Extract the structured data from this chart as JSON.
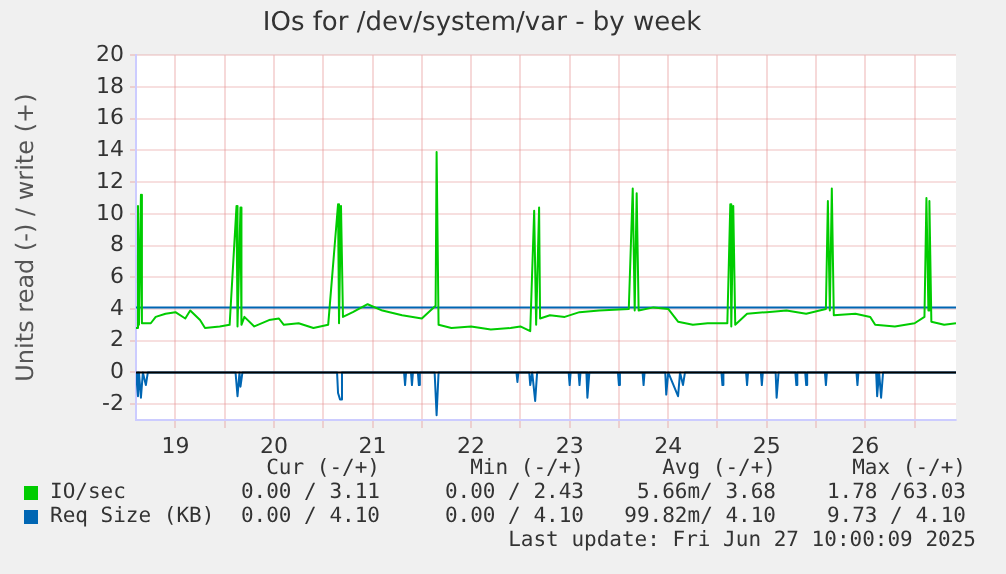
{
  "chart_data": {
    "type": "line",
    "title": "IOs for /dev/system/var - by week",
    "ylabel": "Units read (-) / write (+)",
    "xlim": [
      19.1,
      27.42
    ],
    "xticks": [
      {
        "value": 19.5,
        "label": "19"
      },
      {
        "value": 20,
        "label": null
      },
      {
        "value": 20.5,
        "label": "20"
      },
      {
        "value": 21,
        "label": null
      },
      {
        "value": 21.5,
        "label": "21"
      },
      {
        "value": 22,
        "label": null
      },
      {
        "value": 22.5,
        "label": "22"
      },
      {
        "value": 23,
        "label": null
      },
      {
        "value": 23.5,
        "label": "23"
      },
      {
        "value": 24,
        "label": null
      },
      {
        "value": 24.5,
        "label": "24"
      },
      {
        "value": 25,
        "label": null
      },
      {
        "value": 25.5,
        "label": "25"
      },
      {
        "value": 26,
        "label": null
      },
      {
        "value": 26.5,
        "label": "26"
      },
      {
        "value": 27,
        "label": null
      }
    ],
    "ylim": [
      -3,
      20
    ],
    "yticks": [
      -2,
      0,
      2,
      4,
      6,
      8,
      10,
      12,
      14,
      16,
      18,
      20
    ],
    "grid": true,
    "legend": "bottom left",
    "marker": "none",
    "line_style": "solid",
    "ref_lines": [
      {
        "axis": "y",
        "value": 0,
        "color": "#000000"
      }
    ],
    "series": [
      {
        "name": "IO/sec",
        "color": "#00cc00",
        "x": [
          19.1,
          19.12,
          19.13,
          19.15,
          19.16,
          19.25,
          19.3,
          19.4,
          19.5,
          19.6,
          19.65,
          19.75,
          19.8,
          19.95,
          20.05,
          20.12,
          20.13,
          20.16,
          20.17,
          20.2,
          20.3,
          20.45,
          20.55,
          20.6,
          20.75,
          20.9,
          21.05,
          21.15,
          21.16,
          21.18,
          21.2,
          21.3,
          21.45,
          21.6,
          21.8,
          22.0,
          22.14,
          22.15,
          22.17,
          22.3,
          22.5,
          22.7,
          22.9,
          23.0,
          23.1,
          23.14,
          23.16,
          23.19,
          23.2,
          23.3,
          23.45,
          23.6,
          23.8,
          24.1,
          24.14,
          24.16,
          24.18,
          24.2,
          24.35,
          24.5,
          24.6,
          24.75,
          24.9,
          25.1,
          25.13,
          25.14,
          25.16,
          25.18,
          25.3,
          25.5,
          25.7,
          25.9,
          26.1,
          26.12,
          26.14,
          26.16,
          26.18,
          26.4,
          26.55,
          26.6,
          26.8,
          27.0,
          27.1,
          27.12,
          27.14,
          27.15,
          27.17,
          27.3,
          27.42
        ],
        "values": [
          2.8,
          10.5,
          3,
          11.2,
          3.1,
          3.1,
          3.5,
          3.7,
          3.8,
          3.4,
          3.9,
          3.3,
          2.8,
          2.9,
          3,
          10.5,
          2.9,
          10.4,
          3,
          3.5,
          2.9,
          3.3,
          3.4,
          3,
          3.1,
          2.8,
          3,
          10.6,
          3.1,
          10.5,
          3.5,
          3.8,
          4.3,
          3.9,
          3.6,
          3.4,
          4.2,
          13.9,
          3,
          2.8,
          2.9,
          2.7,
          2.8,
          2.9,
          2.6,
          10.2,
          3,
          10.4,
          3.4,
          3.6,
          3.5,
          3.8,
          3.9,
          4,
          11.6,
          3.9,
          11.3,
          3.9,
          4.1,
          4,
          3.2,
          3,
          3.1,
          3.1,
          10.6,
          2.9,
          10.5,
          3,
          3.7,
          3.8,
          3.9,
          3.7,
          4,
          10.8,
          3.9,
          11.6,
          3.6,
          3.7,
          3.5,
          3,
          2.9,
          3.1,
          3.5,
          11,
          3.9,
          10.8,
          3.2,
          3,
          3.1
        ]
      },
      {
        "name": "Req Size (KB)",
        "color": "#0066b3",
        "x": [
          19.1,
          27.42
        ],
        "values": [
          4.1,
          4.1
        ]
      },
      {
        "color": "#0066b3",
        "x": [
          19.1,
          19.12,
          19.13,
          19.15,
          19.17,
          19.2,
          19.22,
          20.11,
          20.13,
          20.15,
          20.16,
          20.18,
          21.14,
          21.15,
          21.17,
          21.19,
          21.82,
          21.83,
          21.84,
          21.89,
          21.9,
          21.91,
          21.96,
          21.97,
          21.98,
          22.13,
          22.15,
          22.17,
          22.96,
          22.97,
          22.98,
          23.09,
          23.1,
          23.12,
          23.15,
          23.17,
          23.49,
          23.5,
          23.51,
          23.59,
          23.6,
          23.61,
          23.67,
          23.68,
          23.7,
          23.99,
          24.0,
          24.01,
          24.24,
          24.25,
          24.26,
          24.47,
          24.48,
          24.5,
          24.6,
          24.62,
          24.65,
          24.67,
          25.04,
          25.05,
          25.06,
          25.29,
          25.3,
          25.31,
          25.44,
          25.45,
          25.46,
          25.59,
          25.6,
          25.62,
          25.79,
          25.8,
          25.81,
          25.89,
          25.9,
          25.91,
          26.09,
          26.1,
          26.11,
          26.41,
          26.42,
          26.43,
          26.61,
          26.62,
          26.64,
          26.66,
          26.68,
          27.42
        ],
        "values": [
          0,
          -1.5,
          0,
          -1.6,
          0,
          -0.8,
          0,
          0,
          -1.5,
          0,
          -0.9,
          0,
          0,
          -1.3,
          -1.7,
          0,
          0,
          -0.8,
          0,
          0,
          -0.8,
          0,
          0,
          -0.8,
          0,
          0,
          -2.7,
          0,
          0,
          -0.6,
          0,
          0,
          -0.8,
          0,
          -1.8,
          0,
          0,
          -0.8,
          0,
          0,
          -0.8,
          0,
          0,
          -1.6,
          0,
          0,
          -0.8,
          0,
          0,
          -0.8,
          0,
          0,
          -1.4,
          0,
          -1.5,
          0,
          -0.8,
          0,
          0,
          -0.8,
          0,
          0,
          -0.8,
          0,
          0,
          -0.8,
          0,
          0,
          -1.6,
          0,
          0,
          -0.8,
          0,
          0,
          -0.8,
          0,
          0,
          -0.8,
          0,
          0,
          -0.8,
          0,
          0,
          -1.5,
          0,
          -1.6,
          0,
          0
        ]
      }
    ],
    "annotations": [
      "Cur (-/+)",
      "Min (-/+)",
      "Avg (-/+)",
      "Max (-/+)",
      "0.00 / 3.11",
      "0.00 / 2.43",
      "5.66m/ 3.68",
      "1.78 /63.03",
      "0.00 / 4.10",
      "0.00 / 4.10",
      "99.82m/ 4.10",
      "9.73 / 4.10",
      "Last update: Fri Jun 27 10:00:09 2025"
    ]
  }
}
